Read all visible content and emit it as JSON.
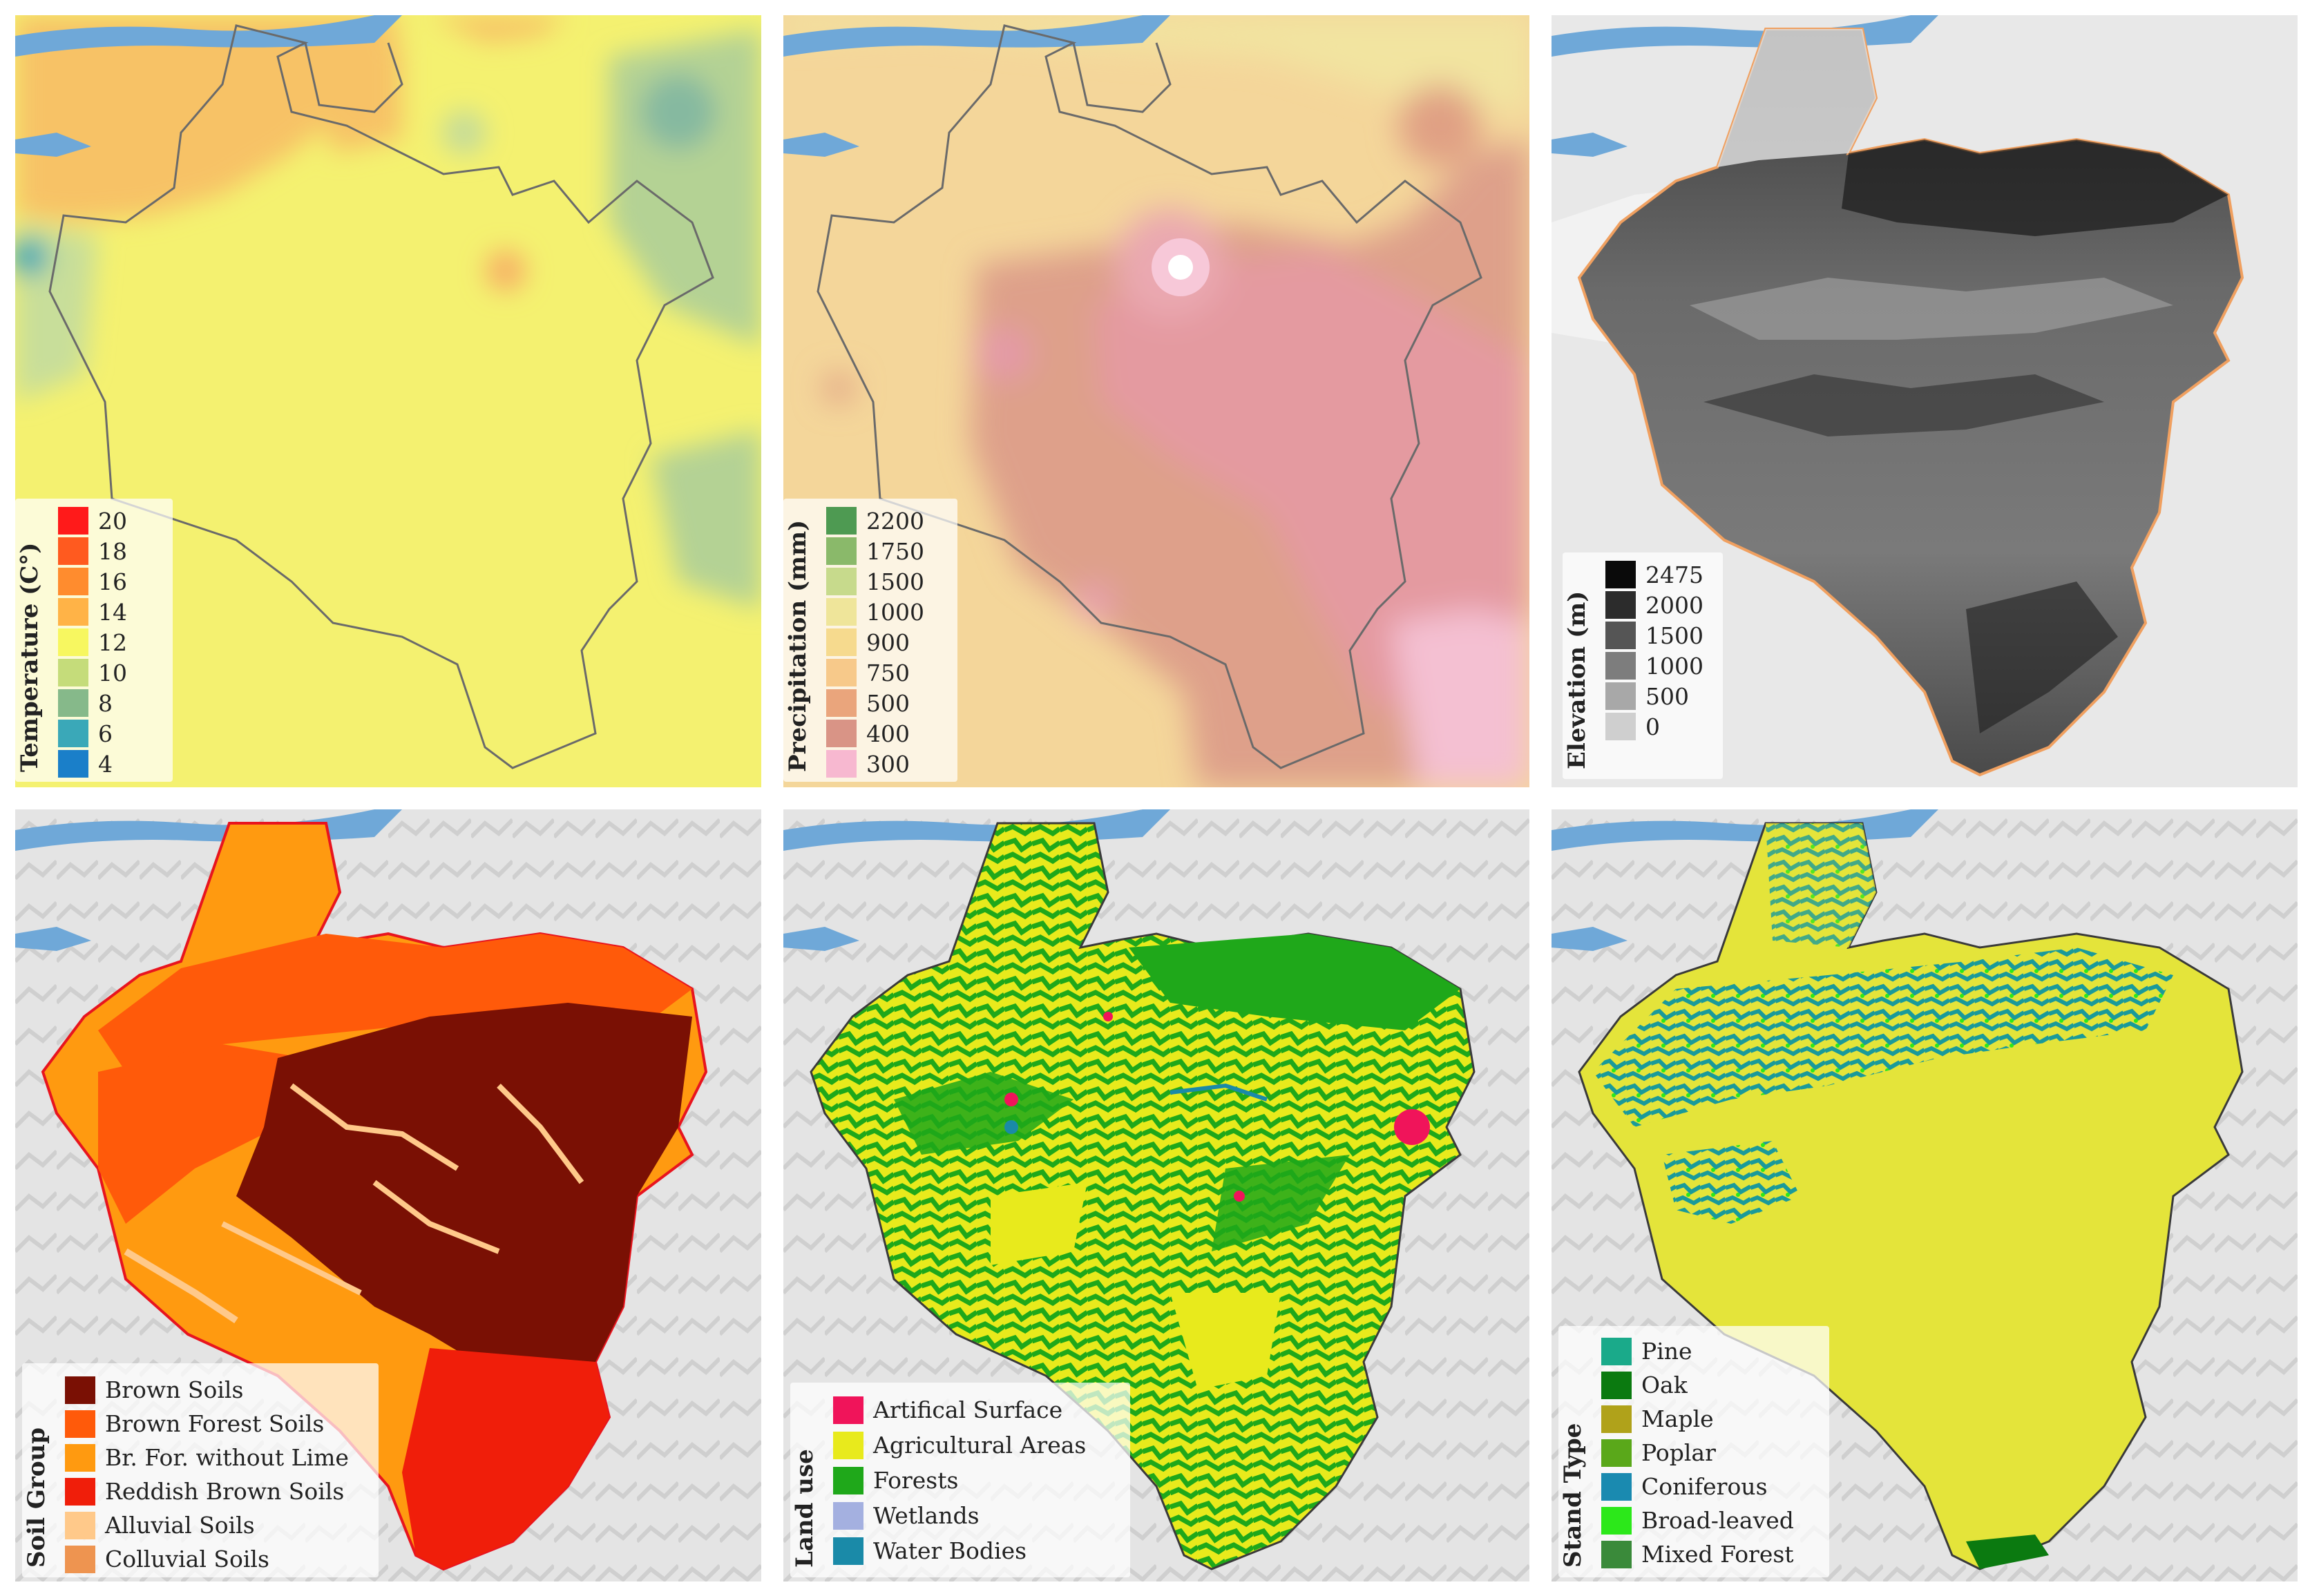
{
  "panels": {
    "temperature": {
      "legend_title": "Temperature (C°)",
      "items": [
        {
          "label": "20",
          "color": "#ff1a1a"
        },
        {
          "label": "18",
          "color": "#ff5a1f"
        },
        {
          "label": "16",
          "color": "#ff8c2e"
        },
        {
          "label": "14",
          "color": "#ffb347"
        },
        {
          "label": "12",
          "color": "#f7f760"
        },
        {
          "label": "10",
          "color": "#c5dc7a"
        },
        {
          "label": "8",
          "color": "#86b98a"
        },
        {
          "label": "6",
          "color": "#3aa8b8"
        },
        {
          "label": "4",
          "color": "#1a7fc9"
        }
      ]
    },
    "precipitation": {
      "legend_title": "Precipitation (mm)",
      "items": [
        {
          "label": "2200",
          "color": "#4e9a52"
        },
        {
          "label": "1750",
          "color": "#8ab96a"
        },
        {
          "label": "1500",
          "color": "#c7da8c"
        },
        {
          "label": "1000",
          "color": "#efe59a"
        },
        {
          "label": "900",
          "color": "#f6da8e"
        },
        {
          "label": "750",
          "color": "#f7c98a"
        },
        {
          "label": "500",
          "color": "#eaa57c"
        },
        {
          "label": "400",
          "color": "#d99486"
        },
        {
          "label": "300",
          "color": "#f7b8d0"
        }
      ]
    },
    "elevation": {
      "legend_title": "Elevation (m)",
      "items": [
        {
          "label": "2475",
          "color": "#0a0a0a"
        },
        {
          "label": "2000",
          "color": "#2c2c2c"
        },
        {
          "label": "1500",
          "color": "#555555"
        },
        {
          "label": "1000",
          "color": "#7d7d7d"
        },
        {
          "label": "500",
          "color": "#a8a8a8"
        },
        {
          "label": "0",
          "color": "#cfcfcf"
        }
      ]
    },
    "soil": {
      "legend_title": "Soil Group",
      "items": [
        {
          "label": "Brown Soils",
          "color": "#7a1004"
        },
        {
          "label": "Brown Forest Soils",
          "color": "#ff5a0a"
        },
        {
          "label": "Br. For. without Lime",
          "color": "#ff9a10"
        },
        {
          "label": "Reddish Brown Soils",
          "color": "#f01e0a"
        },
        {
          "label": "Alluvial Soils",
          "color": "#ffc98a"
        },
        {
          "label": "Colluvial Soils",
          "color": "#ee9450"
        }
      ]
    },
    "landuse": {
      "legend_title": "Land use",
      "items": [
        {
          "label": "Artifical Surface",
          "color": "#f0145a"
        },
        {
          "label": "Agricultural Areas",
          "color": "#e8ea1c"
        },
        {
          "label": "Forests",
          "color": "#1fa81a"
        },
        {
          "label": "Wetlands",
          "color": "#a4b0e0"
        },
        {
          "label": "Water Bodies",
          "color": "#1a8aa8"
        }
      ]
    },
    "stand": {
      "legend_title": "Stand Type",
      "items": [
        {
          "label": "Pine",
          "color": "#1aaa8a"
        },
        {
          "label": "Oak",
          "color": "#0b7a10"
        },
        {
          "label": "Maple",
          "color": "#b0a21a"
        },
        {
          "label": "Poplar",
          "color": "#5aa81a"
        },
        {
          "label": "Coniferous",
          "color": "#1a8ab0"
        },
        {
          "label": "Broad-leaved",
          "color": "#2ce81a"
        },
        {
          "label": "Mixed Forest",
          "color": "#3a8a3a"
        }
      ]
    }
  },
  "colors": {
    "sea": "#6fa8d8",
    "hillshade_light": "#e6e6e6",
    "basin_yellow": "#e4e43a",
    "forest_green": "#1fa81a",
    "soil_dark": "#7a1004",
    "soil_orange": "#ff5a0a"
  }
}
